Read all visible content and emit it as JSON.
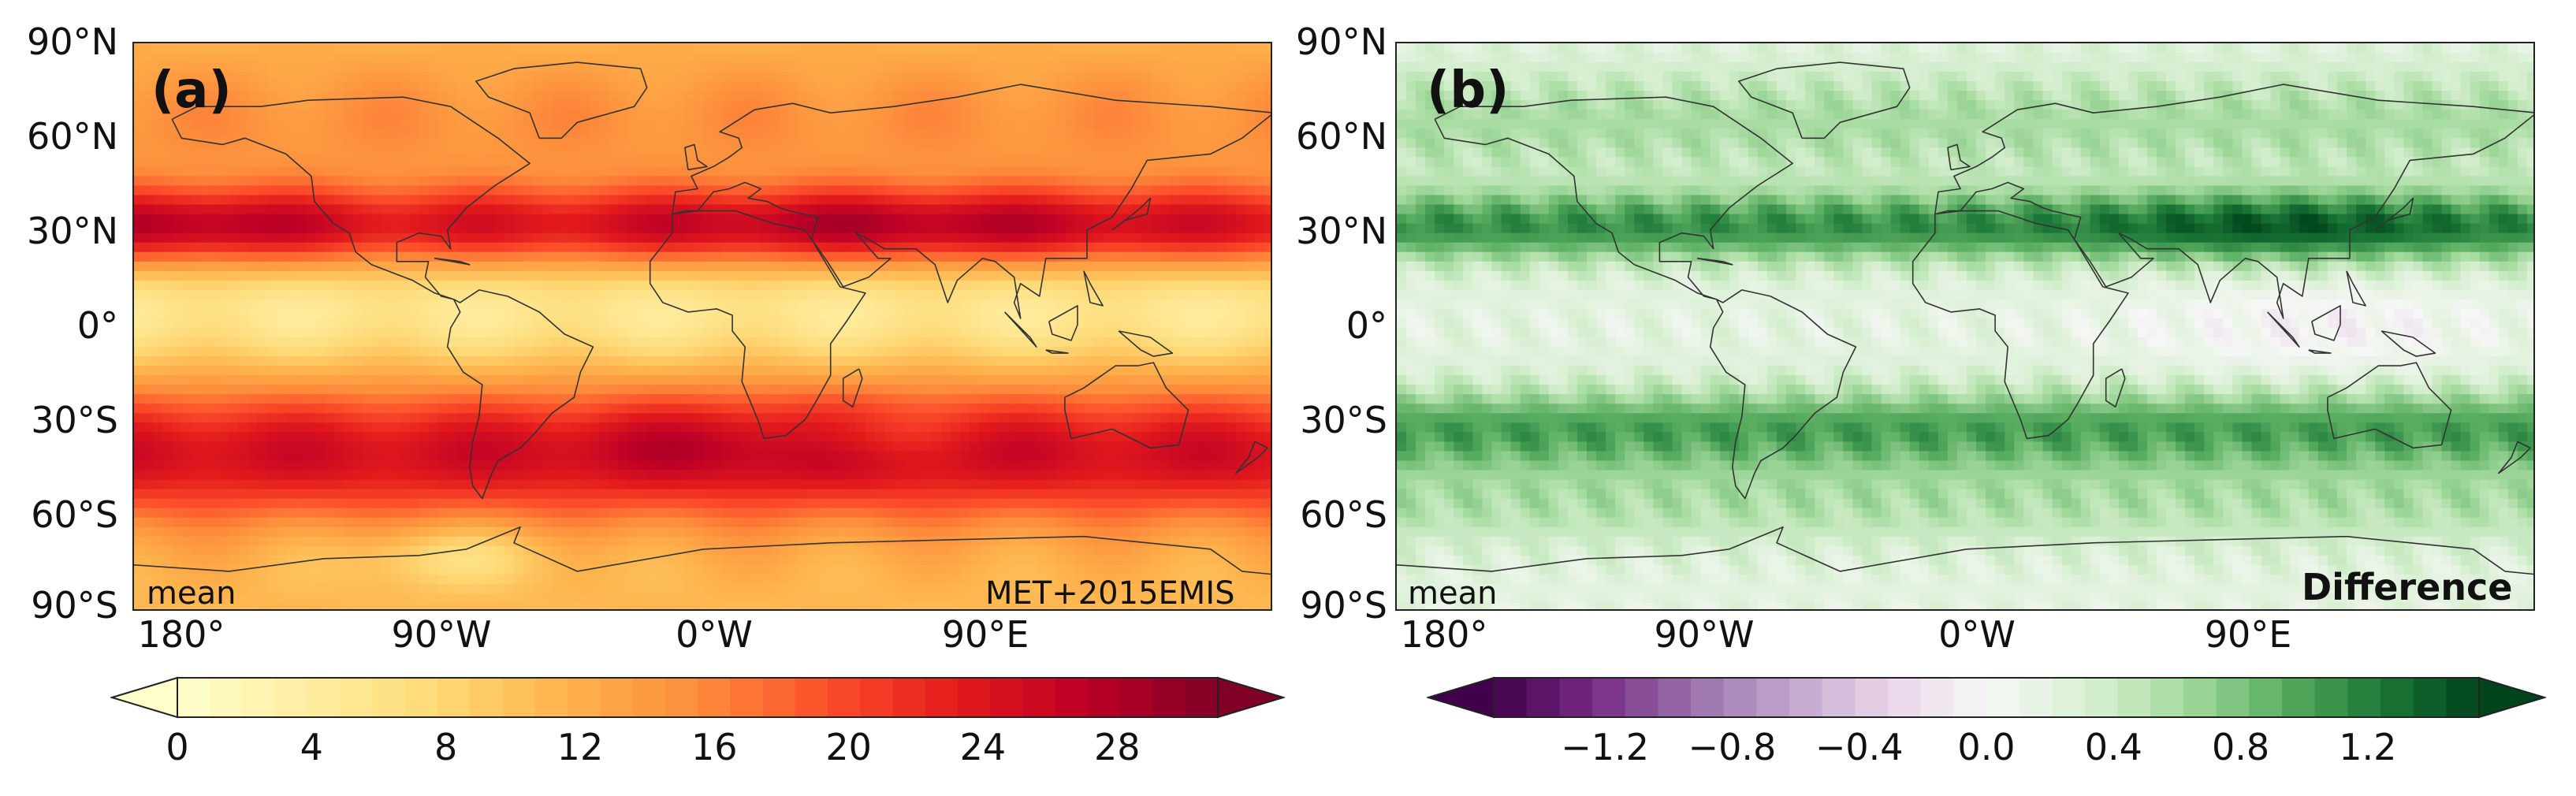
{
  "panels": [
    {
      "label": "(a)",
      "corner_left": "mean",
      "corner_right": "MET+2015EMIS",
      "colormap": "YlOrRd",
      "ramp": [
        "#ffffcc",
        "#ffeda0",
        "#fed976",
        "#feb24c",
        "#fd8d3c",
        "#fc4e2a",
        "#e31a1c",
        "#bd0026",
        "#800026"
      ],
      "lat_ticks": [
        "90°N",
        "60°N",
        "30°N",
        "0°",
        "30°S",
        "60°S",
        "90°S"
      ],
      "lon_ticks": [
        "180°",
        "90°W",
        "0°W",
        "90°E"
      ],
      "colorbar": {
        "range": [
          0,
          31
        ],
        "levels": 32,
        "tick_labels": [
          "0",
          "4",
          "8",
          "12",
          "16",
          "20",
          "24",
          "28"
        ],
        "tick_values": [
          0,
          4,
          8,
          12,
          16,
          20,
          24,
          28
        ],
        "extend": "both"
      }
    },
    {
      "label": "(b)",
      "corner_left": "mean",
      "corner_right": "Difference",
      "colormap": "PRGn",
      "ramp": [
        "#40004b",
        "#762a83",
        "#9970ab",
        "#c2a5cf",
        "#e7d4e8",
        "#f7f7f7",
        "#d9f0d3",
        "#a6dba0",
        "#5aae61",
        "#1b7837",
        "#00441b"
      ],
      "lat_ticks": [
        "90°N",
        "60°N",
        "30°N",
        "0°",
        "30°S",
        "60°S",
        "90°S"
      ],
      "lon_ticks": [
        "180°",
        "90°W",
        "0°W",
        "90°E"
      ],
      "colorbar": {
        "range": [
          -1.55,
          1.55
        ],
        "levels": 30,
        "tick_labels": [
          "−1.2",
          "−0.8",
          "−0.4",
          "0.0",
          "0.4",
          "0.8",
          "1.2"
        ],
        "tick_values": [
          -1.2,
          -0.8,
          -0.4,
          0.0,
          0.4,
          0.8,
          1.2
        ],
        "extend": "both"
      }
    }
  ]
}
